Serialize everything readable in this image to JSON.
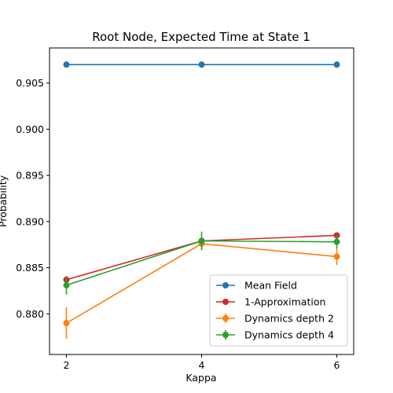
{
  "chart_data": {
    "type": "line",
    "title": "Root Node, Expected Time at State 1",
    "xlabel": "Kappa",
    "ylabel": "Probability",
    "x": [
      2,
      4,
      6
    ],
    "x_ticks": [
      "2",
      "4",
      "6"
    ],
    "xlim": [
      1.75,
      6.25
    ],
    "y_ticks": [
      "0.880",
      "0.885",
      "0.890",
      "0.895",
      "0.900",
      "0.905"
    ],
    "ylim": [
      0.8756,
      0.9088
    ],
    "grid": false,
    "legend_position": "lower-right",
    "series": [
      {
        "name": "Mean Field",
        "color": "#1f77b4",
        "values": [
          0.907,
          0.907,
          0.907
        ],
        "errors": null
      },
      {
        "name": "1-Approximation",
        "color": "#d62728",
        "values": [
          0.8837,
          0.8879,
          0.8885
        ],
        "errors": null
      },
      {
        "name": "Dynamics depth 2",
        "color": "#ff7f0e",
        "values": [
          0.879,
          0.8876,
          0.8862
        ],
        "errors": [
          0.0017,
          0.0007,
          0.0009
        ]
      },
      {
        "name": "Dynamics depth 4",
        "color": "#2ca02c",
        "values": [
          0.8831,
          0.8879,
          0.8878
        ],
        "errors": [
          0.001,
          0.001,
          0.0007
        ]
      }
    ]
  }
}
